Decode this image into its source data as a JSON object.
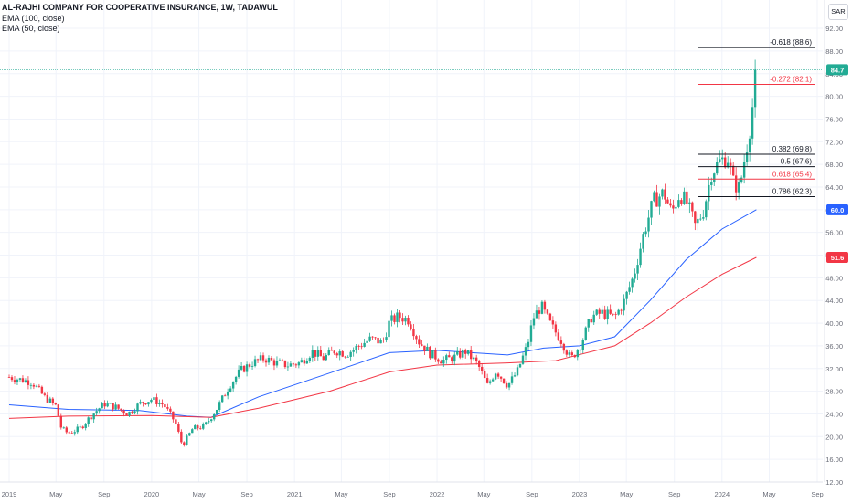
{
  "header": {
    "title": "AL-RAJHI COMPANY FOR COOPERATIVE INSURANCE, 1W, TADAWUL",
    "indicators": [
      "EMA (100, close)",
      "EMA (50, close)"
    ],
    "currency": "SAR"
  },
  "colors": {
    "up": "#22ab94",
    "down": "#f23645",
    "ema50": "#2962ff",
    "ema100": "#f23645",
    "fib_red": "#f23645",
    "fib_black": "#131722",
    "grid": "#f0f3fa",
    "axis_text": "#6a6d78",
    "last_price_line": "#22ab94"
  },
  "chart_data": {
    "type": "candlestick",
    "y_axis": {
      "position": "right",
      "range": [
        12.0,
        97.0
      ],
      "ticks": [
        "12.00",
        "16.00",
        "20.00",
        "24.00",
        "28.00",
        "32.00",
        "36.00",
        "40.00",
        "44.00",
        "48.00",
        "52.00",
        "56.00",
        "60.00",
        "64.00",
        "68.00",
        "72.00",
        "76.00",
        "80.00",
        "84.00",
        "88.00",
        "92.00"
      ],
      "tick_values": [
        12,
        16,
        20,
        24,
        28,
        32,
        36,
        40,
        44,
        48,
        52,
        56,
        60,
        64,
        68,
        72,
        76,
        80,
        84,
        88,
        92
      ]
    },
    "x_axis": {
      "ticks": [
        {
          "label": "2019",
          "date": "2019-01-01"
        },
        {
          "label": "May",
          "date": "2019-05-01"
        },
        {
          "label": "Sep",
          "date": "2019-09-01"
        },
        {
          "label": "2020",
          "date": "2020-01-01"
        },
        {
          "label": "May",
          "date": "2020-05-01"
        },
        {
          "label": "Sep",
          "date": "2020-09-01"
        },
        {
          "label": "2021",
          "date": "2021-01-01"
        },
        {
          "label": "May",
          "date": "2021-05-01"
        },
        {
          "label": "Sep",
          "date": "2021-09-01"
        },
        {
          "label": "2022",
          "date": "2022-01-01"
        },
        {
          "label": "May",
          "date": "2022-05-01"
        },
        {
          "label": "Sep",
          "date": "2022-09-01"
        },
        {
          "label": "2023",
          "date": "2023-01-01"
        },
        {
          "label": "May",
          "date": "2023-05-01"
        },
        {
          "label": "Sep",
          "date": "2023-09-01"
        },
        {
          "label": "2024",
          "date": "2024-01-01"
        },
        {
          "label": "May",
          "date": "2024-05-01"
        },
        {
          "label": "Sep",
          "date": "2024-09-01"
        }
      ]
    },
    "close_path": [
      {
        "date": "2019-01-01",
        "close": 30.5
      },
      {
        "date": "2019-03-01",
        "close": 29.6
      },
      {
        "date": "2019-04-01",
        "close": 27.0
      },
      {
        "date": "2019-05-01",
        "close": 25.4
      },
      {
        "date": "2019-05-15",
        "close": 21.4
      },
      {
        "date": "2019-06-01",
        "close": 20.6
      },
      {
        "date": "2019-07-01",
        "close": 21.4
      },
      {
        "date": "2019-08-01",
        "close": 23.8
      },
      {
        "date": "2019-09-01",
        "close": 25.8
      },
      {
        "date": "2019-10-01",
        "close": 25.2
      },
      {
        "date": "2019-11-01",
        "close": 24.0
      },
      {
        "date": "2019-12-01",
        "close": 25.8
      },
      {
        "date": "2020-01-01",
        "close": 26.6
      },
      {
        "date": "2020-02-01",
        "close": 25.6
      },
      {
        "date": "2020-03-01",
        "close": 22.6
      },
      {
        "date": "2020-03-20",
        "close": 18.4
      },
      {
        "date": "2020-04-15",
        "close": 21.4
      },
      {
        "date": "2020-05-15",
        "close": 21.8
      },
      {
        "date": "2020-06-15",
        "close": 24.8
      },
      {
        "date": "2020-07-15",
        "close": 28.6
      },
      {
        "date": "2020-08-15",
        "close": 31.6
      },
      {
        "date": "2020-09-15",
        "close": 33.0
      },
      {
        "date": "2020-10-15",
        "close": 33.8
      },
      {
        "date": "2020-11-15",
        "close": 33.0
      },
      {
        "date": "2020-12-15",
        "close": 32.6
      },
      {
        "date": "2021-01-15",
        "close": 33.0
      },
      {
        "date": "2021-02-15",
        "close": 35.0
      },
      {
        "date": "2021-03-15",
        "close": 33.8
      },
      {
        "date": "2021-04-15",
        "close": 35.2
      },
      {
        "date": "2021-05-15",
        "close": 34.6
      },
      {
        "date": "2021-06-15",
        "close": 36.0
      },
      {
        "date": "2021-07-15",
        "close": 37.2
      },
      {
        "date": "2021-08-15",
        "close": 36.6
      },
      {
        "date": "2021-09-01",
        "close": 40.2
      },
      {
        "date": "2021-09-25",
        "close": 41.2
      },
      {
        "date": "2021-10-20",
        "close": 40.6
      },
      {
        "date": "2021-11-15",
        "close": 36.8
      },
      {
        "date": "2021-12-15",
        "close": 34.6
      },
      {
        "date": "2022-01-15",
        "close": 33.4
      },
      {
        "date": "2022-02-15",
        "close": 34.0
      },
      {
        "date": "2022-03-15",
        "close": 35.0
      },
      {
        "date": "2022-04-15",
        "close": 32.8
      },
      {
        "date": "2022-05-10",
        "close": 29.0
      },
      {
        "date": "2022-06-01",
        "close": 31.6
      },
      {
        "date": "2022-07-01",
        "close": 29.0
      },
      {
        "date": "2022-07-25",
        "close": 31.4
      },
      {
        "date": "2022-08-20",
        "close": 36.0
      },
      {
        "date": "2022-09-05",
        "close": 41.0
      },
      {
        "date": "2022-09-25",
        "close": 43.0
      },
      {
        "date": "2022-10-20",
        "close": 39.6
      },
      {
        "date": "2022-11-15",
        "close": 37.0
      },
      {
        "date": "2022-12-10",
        "close": 33.6
      },
      {
        "date": "2023-01-05",
        "close": 36.4
      },
      {
        "date": "2023-02-01",
        "close": 41.2
      },
      {
        "date": "2023-03-01",
        "close": 41.8
      },
      {
        "date": "2023-04-01",
        "close": 41.0
      },
      {
        "date": "2023-04-25",
        "close": 43.8
      },
      {
        "date": "2023-05-20",
        "close": 48.4
      },
      {
        "date": "2023-06-15",
        "close": 56.0
      },
      {
        "date": "2023-07-10",
        "close": 61.6
      },
      {
        "date": "2023-08-05",
        "close": 63.0
      },
      {
        "date": "2023-08-25",
        "close": 59.4
      },
      {
        "date": "2023-09-15",
        "close": 63.0
      },
      {
        "date": "2023-10-05",
        "close": 60.8
      },
      {
        "date": "2023-10-25",
        "close": 57.0
      },
      {
        "date": "2023-11-15",
        "close": 60.0
      },
      {
        "date": "2023-12-05",
        "close": 66.6
      },
      {
        "date": "2023-12-25",
        "close": 68.4
      },
      {
        "date": "2024-01-15",
        "close": 69.4
      },
      {
        "date": "2024-01-30",
        "close": 64.8
      },
      {
        "date": "2024-02-15",
        "close": 63.8
      },
      {
        "date": "2024-03-01",
        "close": 69.8
      },
      {
        "date": "2024-03-15",
        "close": 75.6
      },
      {
        "date": "2024-03-29",
        "close": 84.7
      }
    ],
    "series": [
      {
        "name": "EMA (50, close)",
        "color": "#2962ff",
        "points": [
          {
            "date": "2019-01-01",
            "value": 25.6
          },
          {
            "date": "2019-06-01",
            "value": 24.8
          },
          {
            "date": "2019-12-01",
            "value": 24.6
          },
          {
            "date": "2020-04-01",
            "value": 23.6
          },
          {
            "date": "2020-06-01",
            "value": 23.4
          },
          {
            "date": "2020-10-01",
            "value": 27.0
          },
          {
            "date": "2021-04-01",
            "value": 31.2
          },
          {
            "date": "2021-09-01",
            "value": 34.8
          },
          {
            "date": "2022-01-01",
            "value": 35.2
          },
          {
            "date": "2022-07-01",
            "value": 34.4
          },
          {
            "date": "2022-10-01",
            "value": 35.6
          },
          {
            "date": "2023-01-01",
            "value": 36.0
          },
          {
            "date": "2023-04-01",
            "value": 37.6
          },
          {
            "date": "2023-07-01",
            "value": 44.0
          },
          {
            "date": "2023-10-01",
            "value": 51.2
          },
          {
            "date": "2024-01-01",
            "value": 56.6
          },
          {
            "date": "2024-03-29",
            "value": 60.0
          }
        ]
      },
      {
        "name": "EMA (100, close)",
        "color": "#f23645",
        "points": [
          {
            "date": "2019-01-01",
            "value": 23.2
          },
          {
            "date": "2019-06-01",
            "value": 23.6
          },
          {
            "date": "2020-01-01",
            "value": 23.7
          },
          {
            "date": "2020-06-01",
            "value": 23.4
          },
          {
            "date": "2020-10-01",
            "value": 25.0
          },
          {
            "date": "2021-04-01",
            "value": 28.0
          },
          {
            "date": "2021-09-01",
            "value": 31.4
          },
          {
            "date": "2022-01-01",
            "value": 32.6
          },
          {
            "date": "2022-07-01",
            "value": 33.0
          },
          {
            "date": "2022-11-01",
            "value": 33.4
          },
          {
            "date": "2023-04-01",
            "value": 36.0
          },
          {
            "date": "2023-07-01",
            "value": 40.0
          },
          {
            "date": "2023-10-01",
            "value": 44.6
          },
          {
            "date": "2024-01-01",
            "value": 48.6
          },
          {
            "date": "2024-03-29",
            "value": 51.6
          }
        ]
      }
    ],
    "fib_levels": [
      {
        "label": "-0.618 (88.6)",
        "value": 88.6,
        "color": "#131722",
        "from_date": "2023-11-01",
        "to_date": "2024-08-25"
      },
      {
        "label": "-0.272 (82.1)",
        "value": 82.1,
        "color": "#f23645",
        "from_date": "2023-11-01",
        "to_date": "2024-08-25"
      },
      {
        "label": "0.382 (69.8)",
        "value": 69.8,
        "color": "#131722",
        "from_date": "2023-11-01",
        "to_date": "2024-08-25"
      },
      {
        "label": "0.5 (67.6)",
        "value": 67.6,
        "color": "#131722",
        "from_date": "2023-11-01",
        "to_date": "2024-08-25"
      },
      {
        "label": "0.618 (65.4)",
        "value": 65.4,
        "color": "#f23645",
        "from_date": "2023-11-01",
        "to_date": "2024-08-25"
      },
      {
        "label": "0.786 (62.3)",
        "value": 62.3,
        "color": "#131722",
        "from_date": "2023-11-01",
        "to_date": "2024-08-25"
      }
    ],
    "price_tags": [
      {
        "value": 84.7,
        "label": "84.7",
        "color": "#22ab94"
      },
      {
        "value": 60.0,
        "label": "60.0",
        "color": "#2962ff"
      },
      {
        "value": 51.6,
        "label": "51.6",
        "color": "#f23645"
      }
    ],
    "last_price": 84.7,
    "grid": true
  }
}
